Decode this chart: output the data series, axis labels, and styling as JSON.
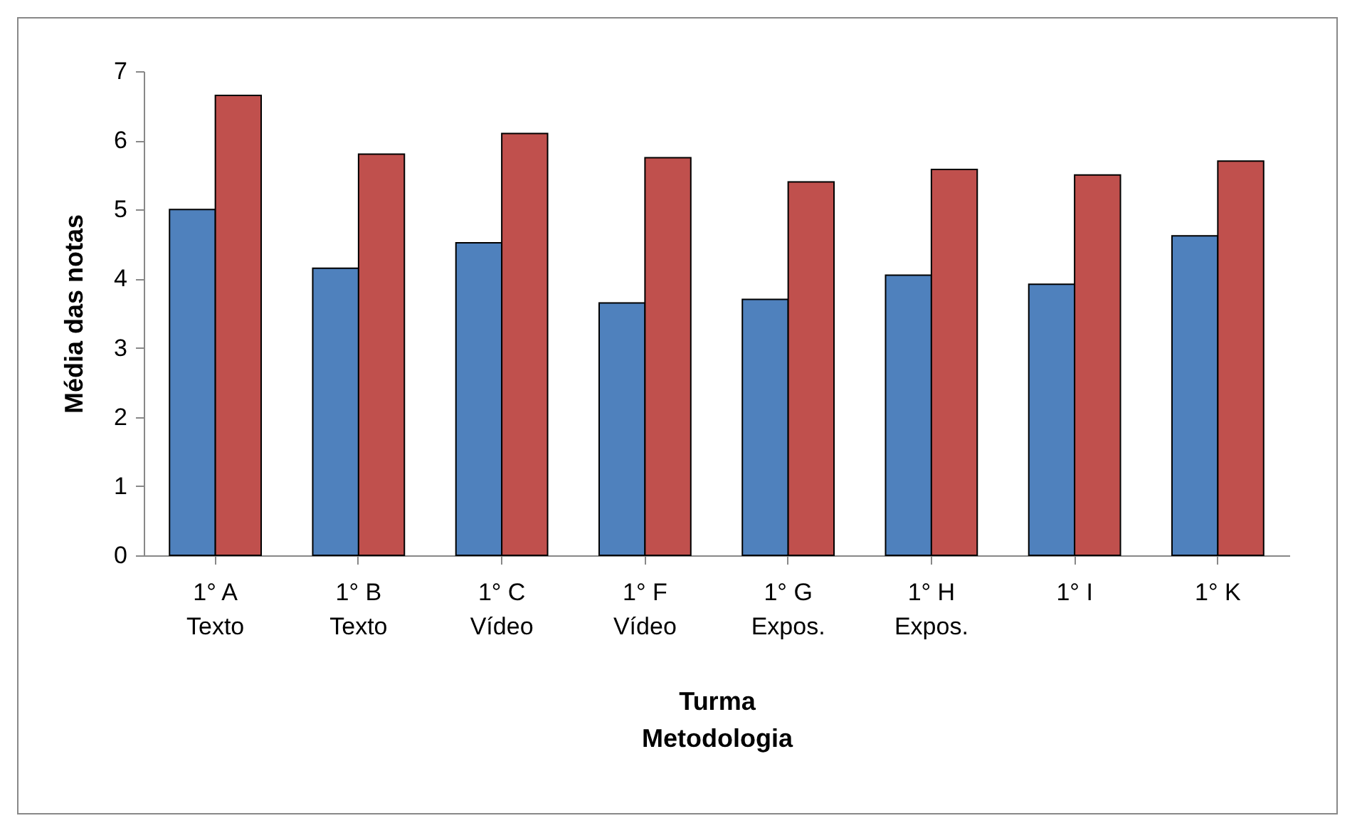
{
  "chart_data": {
    "type": "bar",
    "xlabel": "Turma\nMetodologia",
    "ylabel": "Média das notas",
    "categories": [
      "1° A\nTexto",
      "1° B\nTexto",
      "1° C\nVídeo",
      "1° F\nVídeo",
      "1° G\nExpos.",
      "1° H\nExpos.",
      "1° I",
      "1° K"
    ],
    "series": [
      {
        "color": "#4f81bd",
        "values": [
          5.0,
          4.15,
          4.52,
          3.65,
          3.7,
          4.05,
          3.92,
          4.62
        ]
      },
      {
        "color": "#c0504d",
        "values": [
          6.65,
          5.8,
          6.1,
          5.75,
          5.4,
          5.58,
          5.5,
          5.7
        ]
      }
    ],
    "ylim": [
      0,
      7
    ],
    "yticks": [
      0,
      1,
      2,
      3,
      4,
      5,
      6,
      7
    ],
    "grid": false,
    "legend": false
  }
}
